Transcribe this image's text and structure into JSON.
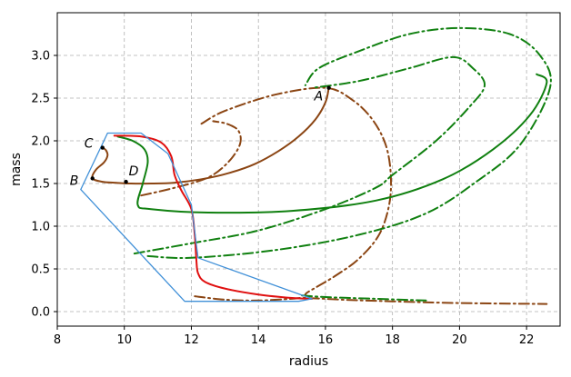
{
  "chart_data": {
    "type": "line",
    "title": "",
    "xlabel": "radius",
    "ylabel": "mass",
    "xlim": [
      8,
      23
    ],
    "ylim": [
      -0.17,
      3.5
    ],
    "xticks": [
      8,
      10,
      12,
      14,
      16,
      18,
      20,
      22
    ],
    "yticks": [
      0.0,
      0.5,
      1.0,
      1.5,
      2.0,
      2.5,
      3.0
    ],
    "grid": true,
    "colors": {
      "brown": "#8b4513",
      "green": "#108010",
      "red": "#e01010",
      "blue": "#4090d8",
      "frame": "#000000"
    },
    "series": [
      {
        "color": "brown",
        "style": "solid",
        "x": [
          16.1,
          16.0,
          15.7,
          15.2,
          14.6,
          13.9,
          13.1,
          12.3,
          11.5,
          10.8,
          10.2,
          9.7,
          9.35,
          9.05,
          9.15,
          9.4,
          9.5,
          9.45,
          9.35
        ],
        "y": [
          2.62,
          2.45,
          2.25,
          2.05,
          1.88,
          1.73,
          1.62,
          1.55,
          1.51,
          1.5,
          1.5,
          1.51,
          1.52,
          1.56,
          1.66,
          1.75,
          1.83,
          1.89,
          1.92
        ]
      },
      {
        "color": "brown",
        "style": "dashdot",
        "x": [
          10.5,
          11.5,
          12.5,
          13.1,
          13.45,
          13.4,
          13.05,
          12.65
        ],
        "y": [
          1.36,
          1.45,
          1.57,
          1.75,
          1.96,
          2.12,
          2.2,
          2.23
        ]
      },
      {
        "color": "brown",
        "style": "dashdot",
        "x": [
          12.3,
          13.0,
          14.5,
          16.0,
          16.8,
          17.4,
          17.8,
          17.95,
          17.9,
          17.6,
          17.0,
          16.3,
          15.7,
          15.4,
          15.6
        ],
        "y": [
          2.2,
          2.35,
          2.54,
          2.62,
          2.48,
          2.25,
          1.95,
          1.6,
          1.25,
          0.9,
          0.62,
          0.42,
          0.28,
          0.2,
          0.16
        ]
      },
      {
        "color": "brown",
        "style": "dashdot",
        "x": [
          12.1,
          13.0,
          14.0,
          15.0,
          15.4,
          16.5,
          18.0,
          20.0,
          22.6
        ],
        "y": [
          0.18,
          0.14,
          0.13,
          0.15,
          0.16,
          0.14,
          0.12,
          0.1,
          0.09
        ]
      },
      {
        "color": "green",
        "style": "solid",
        "x": [
          9.8,
          10.25,
          10.6,
          10.7,
          10.55,
          10.4,
          10.8,
          12.5,
          15.0,
          17.5,
          19.5,
          21.0,
          22.1,
          22.6,
          22.3
        ],
        "y": [
          2.05,
          2.0,
          1.9,
          1.75,
          1.5,
          1.25,
          1.2,
          1.16,
          1.18,
          1.3,
          1.55,
          1.9,
          2.3,
          2.68,
          2.78
        ]
      },
      {
        "color": "green",
        "style": "dashdot",
        "x": [
          10.3,
          12.0,
          14.0,
          16.0,
          17.5,
          18.0,
          19.3,
          20.3,
          20.75,
          20.4,
          19.8,
          18.5,
          17.0,
          15.6
        ],
        "y": [
          0.68,
          0.8,
          0.95,
          1.2,
          1.45,
          1.6,
          2.0,
          2.4,
          2.65,
          2.85,
          2.98,
          2.85,
          2.7,
          2.62
        ]
      },
      {
        "color": "green",
        "style": "dashdot",
        "x": [
          10.7,
          12.0,
          14.5,
          17.0,
          19.0,
          20.5,
          21.8,
          22.7,
          22.4,
          21.5,
          20.0,
          18.5,
          17.0,
          15.8,
          15.4
        ],
        "y": [
          0.65,
          0.63,
          0.72,
          0.9,
          1.15,
          1.52,
          1.95,
          2.62,
          3.0,
          3.25,
          3.32,
          3.25,
          3.05,
          2.85,
          2.65
        ]
      },
      {
        "color": "green",
        "style": "dashdot",
        "x": [
          15.3,
          16.0,
          17.5,
          19.0
        ],
        "y": [
          0.19,
          0.17,
          0.15,
          0.13
        ]
      },
      {
        "color": "red",
        "style": "solid",
        "x": [
          9.7,
          10.5,
          11.1,
          11.4,
          11.5,
          11.7,
          12.0,
          12.1,
          12.15,
          12.2,
          12.4,
          13.0,
          14.0,
          15.0,
          15.6
        ],
        "y": [
          2.06,
          2.05,
          1.98,
          1.82,
          1.6,
          1.42,
          1.2,
          0.9,
          0.6,
          0.45,
          0.35,
          0.27,
          0.2,
          0.16,
          0.15
        ]
      },
      {
        "color": "blue",
        "style": "solid",
        "x": [
          9.5,
          10.5,
          11.3,
          12.0,
          12.2,
          15.6,
          15.2,
          11.8,
          8.7,
          9.5
        ],
        "y": [
          2.09,
          2.09,
          1.85,
          1.25,
          0.63,
          0.15,
          0.12,
          0.12,
          1.43,
          2.09
        ]
      }
    ],
    "points": [
      {
        "label": "A",
        "x": 16.1,
        "y": 2.62
      },
      {
        "label": "B",
        "x": 9.05,
        "y": 1.56
      },
      {
        "label": "C",
        "x": 9.35,
        "y": 1.92
      },
      {
        "label": "D",
        "x": 10.05,
        "y": 1.52
      }
    ]
  }
}
